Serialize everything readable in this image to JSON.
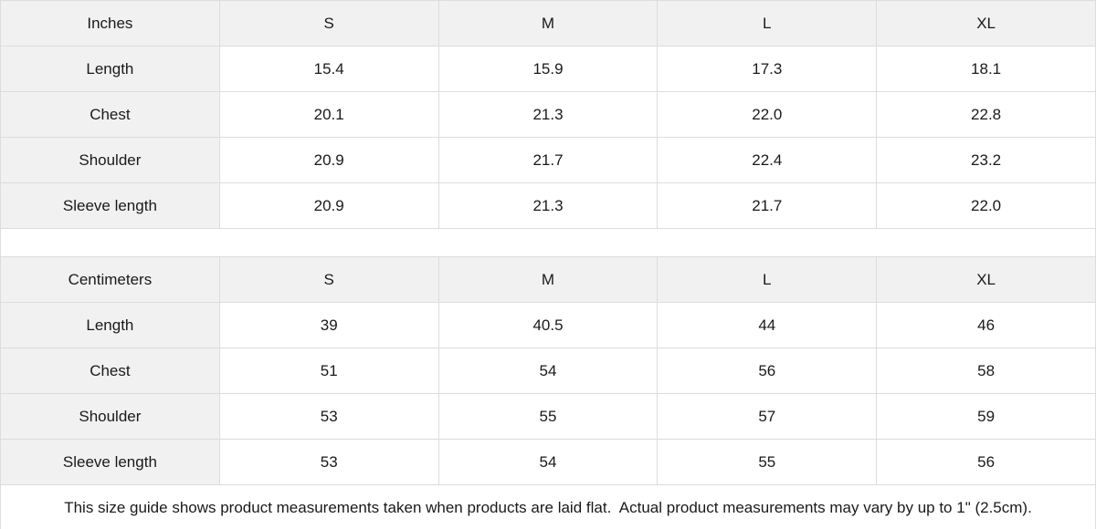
{
  "colors": {
    "header_background": "#f1f1f1",
    "cell_background": "#ffffff",
    "border": "#dcdcdc",
    "text": "#1a1a1a"
  },
  "tables": [
    {
      "unit_label": "Inches",
      "size_headers": [
        "S",
        "M",
        "L",
        "XL"
      ],
      "rows": [
        {
          "label": "Length",
          "values": [
            "15.4",
            "15.9",
            "17.3",
            "18.1"
          ]
        },
        {
          "label": "Chest",
          "values": [
            "20.1",
            "21.3",
            "22.0",
            "22.8"
          ]
        },
        {
          "label": "Shoulder",
          "values": [
            "20.9",
            "21.7",
            "22.4",
            "23.2"
          ]
        },
        {
          "label": "Sleeve length",
          "values": [
            "20.9",
            "21.3",
            "21.7",
            "22.0"
          ]
        }
      ]
    },
    {
      "unit_label": "Centimeters",
      "size_headers": [
        "S",
        "M",
        "L",
        "XL"
      ],
      "rows": [
        {
          "label": "Length",
          "values": [
            "39",
            "40.5",
            "44",
            "46"
          ]
        },
        {
          "label": "Chest",
          "values": [
            "51",
            "54",
            "56",
            "58"
          ]
        },
        {
          "label": "Shoulder",
          "values": [
            "53",
            "55",
            "57",
            "59"
          ]
        },
        {
          "label": "Sleeve length",
          "values": [
            "53",
            "54",
            "55",
            "56"
          ]
        }
      ]
    }
  ],
  "footer_note": "This size guide shows product measurements taken when products are laid flat.  Actual product measurements may vary by up to 1\" (2.5cm)."
}
